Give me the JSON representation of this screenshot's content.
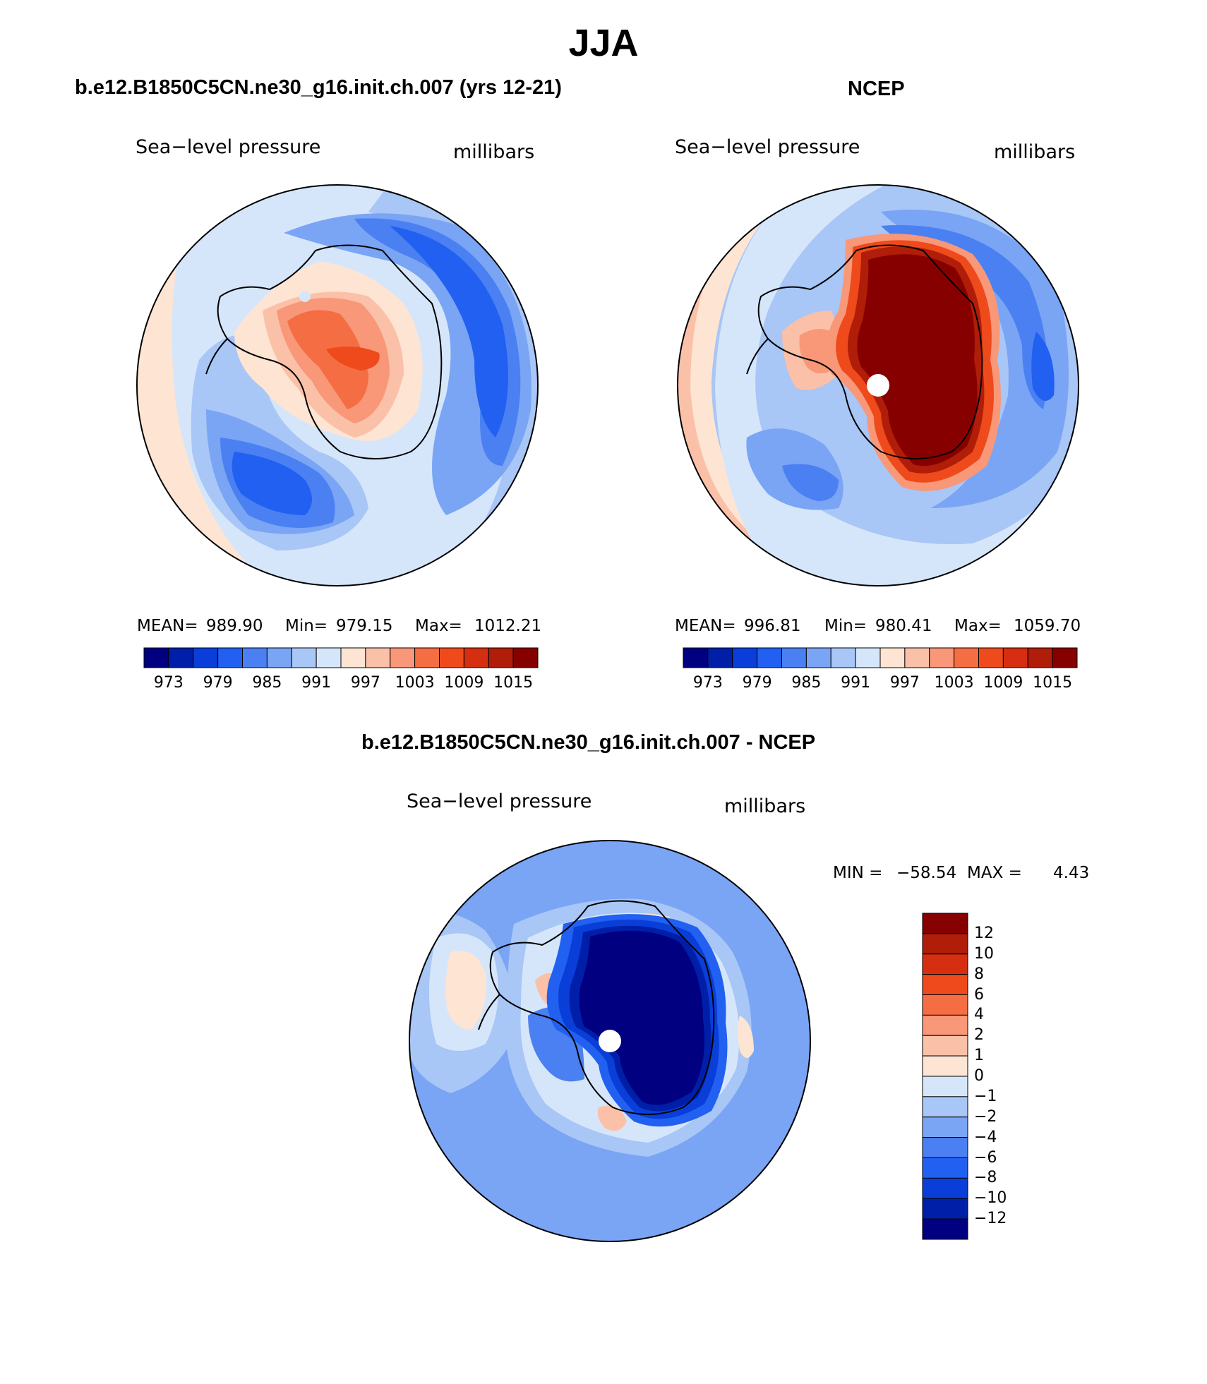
{
  "figure": {
    "title": "JJA"
  },
  "panels": [
    {
      "id": "model",
      "title": "b.e12.B1850C5CN.ne30_g16.init.ch.007 (yrs 12-21)",
      "left_label": "Sea−level pressure",
      "right_label": "millibars",
      "stats": {
        "mean_label": "MEAN=",
        "mean": "989.90",
        "min_label": "Min=",
        "min": "979.15",
        "max_label": "Max=",
        "max": "1012.21"
      },
      "colorbar": {
        "colors": [
          "#000080",
          "#001fa8",
          "#0a3ed8",
          "#2160f0",
          "#4a80f2",
          "#7aa4f4",
          "#a8c6f6",
          "#d6e6fa",
          "#fde4d3",
          "#fbc0a8",
          "#f89878",
          "#f56d42",
          "#ee4a1c",
          "#d52e10",
          "#b01d08",
          "#870000"
        ],
        "labels": [
          "973",
          "979",
          "985",
          "991",
          "997",
          "1003",
          "1009",
          "1015"
        ]
      }
    },
    {
      "id": "obs",
      "title": "NCEP",
      "left_label": "Sea−level pressure",
      "right_label": "millibars",
      "stats": {
        "mean_label": "MEAN=",
        "mean": "996.81",
        "min_label": "Min=",
        "min": "980.41",
        "max_label": "Max=",
        "max": "1059.70"
      },
      "colorbar": {
        "colors": [
          "#000080",
          "#001fa8",
          "#0a3ed8",
          "#2160f0",
          "#4a80f2",
          "#7aa4f4",
          "#a8c6f6",
          "#d6e6fa",
          "#fde4d3",
          "#fbc0a8",
          "#f89878",
          "#f56d42",
          "#ee4a1c",
          "#d52e10",
          "#b01d08",
          "#870000"
        ],
        "labels": [
          "973",
          "979",
          "985",
          "991",
          "997",
          "1003",
          "1009",
          "1015"
        ]
      }
    },
    {
      "id": "diff",
      "title": "b.e12.B1850C5CN.ne30_g16.init.ch.007 - NCEP",
      "left_label": "Sea−level pressure",
      "right_label": "millibars",
      "stats": {
        "min_label": "MIN =",
        "min": "−58.54",
        "max_label": "MAX =",
        "max": "4.43"
      },
      "colorbar": {
        "colors_top_to_bottom": [
          "#870000",
          "#b01d08",
          "#d52e10",
          "#ee4a1c",
          "#f56d42",
          "#f89878",
          "#fbc0a8",
          "#fde4d3",
          "#d6e6fa",
          "#a8c6f6",
          "#7aa4f4",
          "#4a80f2",
          "#2160f0",
          "#0a3ed8",
          "#001fa8",
          "#000080"
        ],
        "labels": [
          "12",
          "10",
          "8",
          "6",
          "4",
          "2",
          "1",
          "0",
          "−1",
          "−2",
          "−4",
          "−6",
          "−8",
          "−10",
          "−12"
        ]
      }
    }
  ]
}
